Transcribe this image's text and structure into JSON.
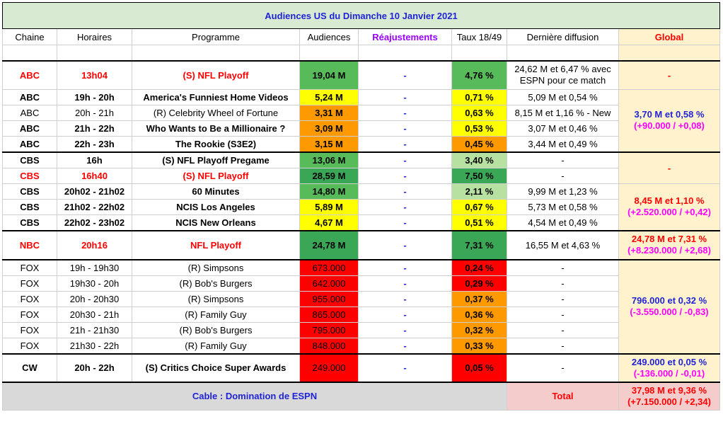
{
  "title": "Audiences US du Dimanche 10 Janvier 2021",
  "headers": {
    "chaine": "Chaine",
    "horaires": "Horaires",
    "programme": "Programme",
    "audiences": "Audiences",
    "reajustements": "Réajustements",
    "taux": "Taux 18/49",
    "derniere": "Dernière diffusion",
    "global": "Global"
  },
  "rows": [
    {
      "chaine": "ABC",
      "horaires": "13h04",
      "programme": "(S) NFL Playoff",
      "audiences": "19,04 M",
      "reaj": "-",
      "taux": "4,76 %",
      "derniere": "24,62 M et 6,47 % avec ESPN pour ce match"
    },
    {
      "chaine": "ABC",
      "horaires": "19h - 20h",
      "programme": "America's Funniest Home Videos",
      "audiences": "5,24 M",
      "reaj": "-",
      "taux": "0,71 %",
      "derniere": "5,09 M et 0,54 %"
    },
    {
      "chaine": "ABC",
      "horaires": "20h - 21h",
      "programme": "(R) Celebrity Wheel of Fortune",
      "audiences": "3,31 M",
      "reaj": "-",
      "taux": "0,63 %",
      "derniere": "8,15 M et 1,16 % - New"
    },
    {
      "chaine": "ABC",
      "horaires": "21h - 22h",
      "programme": "Who Wants to Be a Millionaire ?",
      "audiences": "3,09 M",
      "reaj": "-",
      "taux": "0,53 %",
      "derniere": "3,07 M et 0,46 %"
    },
    {
      "chaine": "ABC",
      "horaires": "22h - 23h",
      "programme": "The Rookie (S3E2)",
      "audiences": "3,15 M",
      "reaj": "-",
      "taux": "0,45 %",
      "derniere": "3,44 M et 0,49 %"
    },
    {
      "chaine": "CBS",
      "horaires": "16h",
      "programme": "(S) NFL Playoff Pregame",
      "audiences": "13,06 M",
      "reaj": "-",
      "taux": "3,40 %",
      "derniere": "-"
    },
    {
      "chaine": "CBS",
      "horaires": "16h40",
      "programme": "(S) NFL Playoff",
      "audiences": "28,59 M",
      "reaj": "-",
      "taux": "7,50 %",
      "derniere": "-"
    },
    {
      "chaine": "CBS",
      "horaires": "20h02 - 21h02",
      "programme": "60 Minutes",
      "audiences": "14,80 M",
      "reaj": "-",
      "taux": "2,11 %",
      "derniere": "9,99 M et 1,23 %"
    },
    {
      "chaine": "CBS",
      "horaires": "21h02 - 22h02",
      "programme": "NCIS Los Angeles",
      "audiences": "5,89 M",
      "reaj": "-",
      "taux": "0,67 %",
      "derniere": "5,73 M et 0,58 %"
    },
    {
      "chaine": "CBS",
      "horaires": "22h02 - 23h02",
      "programme": "NCIS New Orleans",
      "audiences": "4,67 M",
      "reaj": "-",
      "taux": "0,51 %",
      "derniere": "4,54 M et 0,49 %"
    },
    {
      "chaine": "NBC",
      "horaires": "20h16",
      "programme": "NFL Playoff",
      "audiences": "24,78 M",
      "reaj": "-",
      "taux": "7,31 %",
      "derniere": "16,55 M et 4,63 %"
    },
    {
      "chaine": "FOX",
      "horaires": "19h - 19h30",
      "programme": "(R) Simpsons",
      "audiences": "673.000",
      "reaj": "-",
      "taux": "0,24 %",
      "derniere": "-"
    },
    {
      "chaine": "FOX",
      "horaires": "19h30 - 20h",
      "programme": "(R) Bob's Burgers",
      "audiences": "642.000",
      "reaj": "-",
      "taux": "0,29 %",
      "derniere": "-"
    },
    {
      "chaine": "FOX",
      "horaires": "20h - 20h30",
      "programme": "(R) Simpsons",
      "audiences": "955.000",
      "reaj": "-",
      "taux": "0,37 %",
      "derniere": "-"
    },
    {
      "chaine": "FOX",
      "horaires": "20h30 - 21h",
      "programme": "(R) Family Guy",
      "audiences": "865.000",
      "reaj": "-",
      "taux": "0,36 %",
      "derniere": "-"
    },
    {
      "chaine": "FOX",
      "horaires": "21h - 21h30",
      "programme": "(R) Bob's Burgers",
      "audiences": "795.000",
      "reaj": "-",
      "taux": "0,32 %",
      "derniere": "-"
    },
    {
      "chaine": "FOX",
      "horaires": "21h30 - 22h",
      "programme": "(R) Family Guy",
      "audiences": "848.000",
      "reaj": "-",
      "taux": "0,33 %",
      "derniere": "-"
    },
    {
      "chaine": "CW",
      "horaires": "20h - 22h",
      "programme": "(S) Critics Choice Super Awards",
      "audiences": "249.000",
      "reaj": "-",
      "taux": "0,05 %",
      "derniere": "-"
    }
  ],
  "globals": {
    "abc_nfl": "-",
    "abc_line1": "3,70 M et 0,58 %",
    "abc_line2": "(+90.000 / +0,08)",
    "cbs_nfl": "-",
    "cbs_line1": "8,45 M et 1,10 %",
    "cbs_line2": "(+2.520.000 / +0,42)",
    "nbc_line1": "24,78 M et 7,31 %",
    "nbc_line2": "(+8.230.000 / +2,68)",
    "fox_line1": "796.000 et 0,32 %",
    "fox_line2": "(-3.550.000 / -0,83)",
    "cw_line1": "249.000 et 0,05 %",
    "cw_line2": "(-136.000 / -0,01)"
  },
  "footer": {
    "cable": "Cable : Domination de ESPN",
    "total_label": "Total",
    "total_line1": "37,98 M et 9,36 %",
    "total_line2": "(+7.150.000 / +2,34)"
  },
  "colors": {
    "title_bg": "#d9ead3",
    "global_bg": "#fff2cc",
    "total_bg": "#f4cccc",
    "footer_bg": "#d9d9d9"
  }
}
